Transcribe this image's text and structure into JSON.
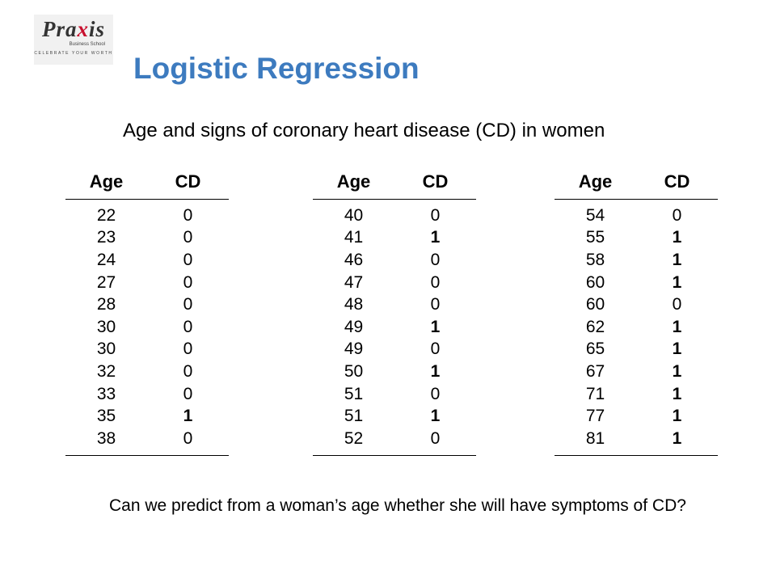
{
  "logo": {
    "word_left": "Pra",
    "word_x": "x",
    "word_right": "is",
    "school": "Business School",
    "tagline": "CELEBRATE YOUR WORTH"
  },
  "title": "Logistic Regression",
  "subtitle": "Age and signs of coronary heart disease (CD) in women",
  "table_headers": {
    "age": "Age",
    "cd": "CD"
  },
  "tables": [
    {
      "rows": [
        {
          "age": "22",
          "cd": "0"
        },
        {
          "age": "23",
          "cd": "0"
        },
        {
          "age": "24",
          "cd": "0"
        },
        {
          "age": "27",
          "cd": "0"
        },
        {
          "age": "28",
          "cd": "0"
        },
        {
          "age": "30",
          "cd": "0"
        },
        {
          "age": "30",
          "cd": "0"
        },
        {
          "age": "32",
          "cd": "0"
        },
        {
          "age": "33",
          "cd": "0"
        },
        {
          "age": "35",
          "cd": "1"
        },
        {
          "age": "38",
          "cd": "0"
        }
      ]
    },
    {
      "rows": [
        {
          "age": "40",
          "cd": "0"
        },
        {
          "age": "41",
          "cd": "1"
        },
        {
          "age": "46",
          "cd": "0"
        },
        {
          "age": "47",
          "cd": "0"
        },
        {
          "age": "48",
          "cd": "0"
        },
        {
          "age": "49",
          "cd": "1"
        },
        {
          "age": "49",
          "cd": "0"
        },
        {
          "age": "50",
          "cd": "1"
        },
        {
          "age": "51",
          "cd": "0"
        },
        {
          "age": "51",
          "cd": "1"
        },
        {
          "age": "52",
          "cd": "0"
        }
      ]
    },
    {
      "rows": [
        {
          "age": "54",
          "cd": "0"
        },
        {
          "age": "55",
          "cd": "1"
        },
        {
          "age": "58",
          "cd": "1"
        },
        {
          "age": "60",
          "cd": "1"
        },
        {
          "age": "60",
          "cd": "0"
        },
        {
          "age": "62",
          "cd": "1"
        },
        {
          "age": "65",
          "cd": "1"
        },
        {
          "age": "67",
          "cd": "1"
        },
        {
          "age": "71",
          "cd": "1"
        },
        {
          "age": "77",
          "cd": "1"
        },
        {
          "age": "81",
          "cd": "1"
        }
      ]
    }
  ],
  "question": "Can we predict from a woman’s age whether she will have symptoms of CD?",
  "colors": {
    "title": "#3d7bbf",
    "logo_accent": "#c8102e"
  }
}
